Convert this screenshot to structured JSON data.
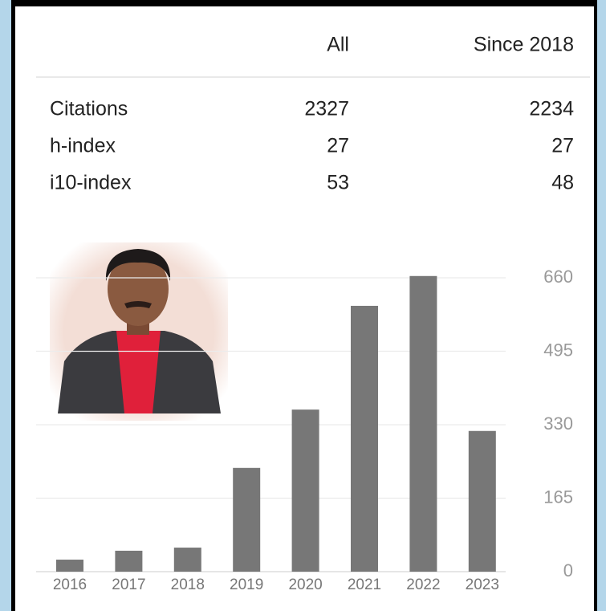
{
  "table": {
    "columns": [
      "All",
      "Since 2018"
    ],
    "rows": [
      [
        "Citations",
        2327,
        2234
      ],
      [
        "h-index",
        27,
        27
      ],
      [
        "i10-index",
        53,
        48
      ]
    ]
  },
  "chart_data": {
    "type": "bar",
    "categories": [
      "2016",
      "2017",
      "2018",
      "2019",
      "2020",
      "2021",
      "2022",
      "2023"
    ],
    "values": [
      27,
      47,
      54,
      233,
      364,
      597,
      664,
      316
    ],
    "color": "#777777",
    "ylim": [
      0,
      660
    ],
    "yticks": [
      0,
      165,
      330,
      495,
      660
    ],
    "grid": true
  }
}
